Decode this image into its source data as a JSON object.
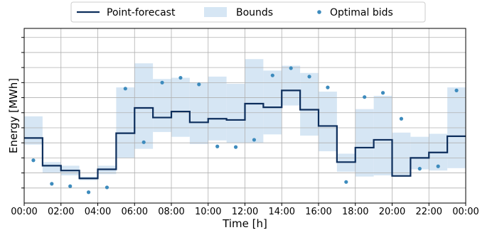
{
  "chart_data": {
    "type": "line",
    "xlabel": "Time [h]",
    "ylabel": "Energy [MWh]",
    "xlim": [
      0,
      24
    ],
    "ylim": [
      0,
      2.9
    ],
    "x_ticks": [
      {
        "value": 0,
        "label": "00:00"
      },
      {
        "value": 2,
        "label": "02:00"
      },
      {
        "value": 4,
        "label": "04:00"
      },
      {
        "value": 6,
        "label": "06:00"
      },
      {
        "value": 8,
        "label": "08:00"
      },
      {
        "value": 10,
        "label": "10:00"
      },
      {
        "value": 12,
        "label": "12:00"
      },
      {
        "value": 14,
        "label": "14:00"
      },
      {
        "value": 16,
        "label": "16:00"
      },
      {
        "value": 18,
        "label": "18:00"
      },
      {
        "value": 20,
        "label": "20:00"
      },
      {
        "value": 22,
        "label": "22:00"
      },
      {
        "value": 24,
        "label": "00:00"
      }
    ],
    "y_ticks": [
      0.25,
      0.5,
      0.75,
      1.0,
      1.25,
      1.5,
      1.75,
      2.0,
      2.25,
      2.5,
      2.75
    ],
    "grid": true,
    "legend_position": "top-center",
    "legend": {
      "point_forecast": "Point-forecast",
      "bounds": "Bounds",
      "optimal_bids": "Optimal bids"
    },
    "colors": {
      "forecast": "#0d2e5c",
      "bounds": "#d6e6f4",
      "bids": "#3d8bbd",
      "grid": "#b0b0b0"
    },
    "series": [
      {
        "name": "Point-forecast",
        "hours": [
          0,
          1,
          2,
          3,
          4,
          5,
          6,
          7,
          8,
          9,
          10,
          11,
          12,
          13,
          14,
          15,
          16,
          17,
          18,
          19,
          20,
          21,
          22,
          23
        ],
        "values": [
          1.08,
          0.62,
          0.54,
          0.41,
          0.56,
          1.16,
          1.58,
          1.42,
          1.52,
          1.34,
          1.4,
          1.38,
          1.65,
          1.59,
          1.87,
          1.55,
          1.28,
          0.68,
          0.92,
          1.05,
          0.45,
          0.75,
          0.84,
          1.11
        ]
      },
      {
        "name": "Bounds",
        "hours": [
          0,
          1,
          2,
          3,
          4,
          5,
          6,
          7,
          8,
          9,
          10,
          11,
          12,
          13,
          14,
          15,
          16,
          17,
          18,
          19,
          20,
          21,
          22,
          23
        ],
        "lower": [
          0.97,
          0.5,
          0.46,
          0.38,
          0.48,
          0.75,
          0.9,
          1.18,
          1.1,
          0.98,
          1.04,
          1.0,
          1.0,
          1.14,
          1.62,
          1.12,
          0.86,
          0.52,
          0.44,
          0.46,
          0.45,
          0.56,
          0.54,
          0.58
        ],
        "upper": [
          1.44,
          0.68,
          0.62,
          0.44,
          0.62,
          1.92,
          2.32,
          2.06,
          2.08,
          2.0,
          2.1,
          1.98,
          2.39,
          2.2,
          2.28,
          2.16,
          1.85,
          0.82,
          1.56,
          1.78,
          1.17,
          1.1,
          1.15,
          1.92
        ]
      },
      {
        "name": "Optimal bids",
        "hours": [
          0.5,
          1.5,
          2.5,
          3.5,
          4.5,
          5.5,
          6.5,
          7.5,
          8.5,
          9.5,
          10.5,
          11.5,
          12.5,
          13.5,
          14.5,
          15.5,
          16.5,
          17.5,
          18.5,
          19.5,
          20.5,
          21.5,
          22.5,
          23.5
        ],
        "values": [
          0.71,
          0.32,
          0.28,
          0.18,
          0.26,
          1.9,
          1.01,
          2.0,
          2.08,
          1.97,
          0.94,
          0.93,
          1.05,
          2.12,
          2.24,
          2.1,
          1.92,
          0.35,
          1.76,
          1.83,
          1.4,
          0.57,
          0.61,
          1.87
        ]
      }
    ]
  }
}
